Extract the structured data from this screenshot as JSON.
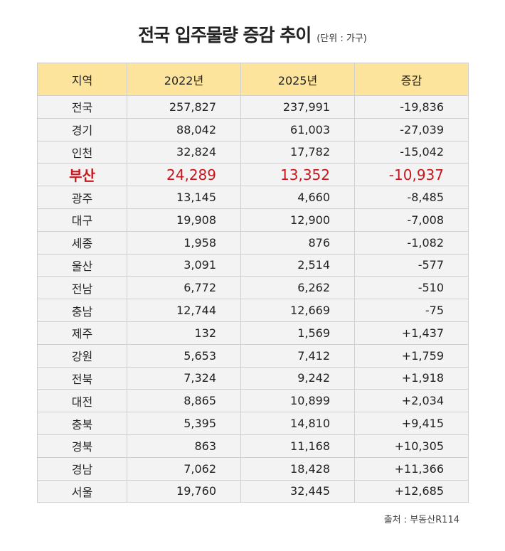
{
  "header": {
    "title": "전국 입주물량 증감 추이",
    "unit": "(단위 : 가구)"
  },
  "table": {
    "columns": [
      "지역",
      "2022년",
      "2025년",
      "증감"
    ],
    "rows": [
      [
        "전국",
        "257,827",
        "237,991",
        "-19,836"
      ],
      [
        "경기",
        "88,042",
        "61,003",
        "-27,039"
      ],
      [
        "인천",
        "32,824",
        "17,782",
        "-15,042"
      ],
      [
        "부산",
        "24,289",
        "13,352",
        "-10,937"
      ],
      [
        "광주",
        "13,145",
        "4,660",
        "-8,485"
      ],
      [
        "대구",
        "19,908",
        "12,900",
        "-7,008"
      ],
      [
        "세종",
        "1,958",
        "876",
        "-1,082"
      ],
      [
        "울산",
        "3,091",
        "2,514",
        "-577"
      ],
      [
        "전남",
        "6,772",
        "6,262",
        "-510"
      ],
      [
        "충남",
        "12,744",
        "12,669",
        "-75"
      ],
      [
        "제주",
        "132",
        "1,569",
        "+1,437"
      ],
      [
        "강원",
        "5,653",
        "7,412",
        "+1,759"
      ],
      [
        "전북",
        "7,324",
        "9,242",
        "+1,918"
      ],
      [
        "대전",
        "8,865",
        "10,899",
        "+2,034"
      ],
      [
        "충북",
        "5,395",
        "14,810",
        "+9,415"
      ],
      [
        "경북",
        "863",
        "11,168",
        "+10,305"
      ],
      [
        "경남",
        "7,062",
        "18,428",
        "+11,366"
      ],
      [
        "서울",
        "19,760",
        "32,445",
        "+12,685"
      ]
    ]
  },
  "source": "출처 : 부동산R114"
}
